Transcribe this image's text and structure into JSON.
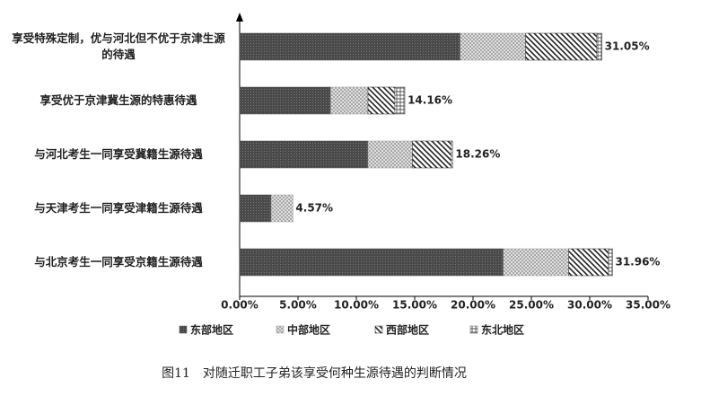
{
  "chart_data": {
    "type": "stacked-barh",
    "categories": [
      "享受特殊定制，优与河北但不优于京津生源的待遇",
      "享受优于京津冀生源的特惠待遇",
      "与河北考生一同享受冀籍生源待遇",
      "与天津考生一同享受津籍生源待遇",
      "与北京考生一同享受京籍生源待遇"
    ],
    "series": [
      {
        "name": "东部地区",
        "color": "#4a4a4a",
        "values": [
          18.9,
          7.8,
          11.0,
          2.7,
          22.6
        ]
      },
      {
        "name": "中部地区",
        "color": "#9a9a9a",
        "values": [
          5.6,
          3.2,
          3.8,
          1.87,
          5.6
        ]
      },
      {
        "name": "西部地区",
        "color": "#222222",
        "values": [
          6.1,
          2.3,
          3.35,
          0,
          3.4
        ]
      },
      {
        "name": "东北地区",
        "color": "#555555",
        "values": [
          0.45,
          0.86,
          0.11,
          0,
          0.36
        ]
      }
    ],
    "totals": [
      31.05,
      14.16,
      18.26,
      4.57,
      31.96
    ],
    "total_labels": [
      "31.05%",
      "14.16%",
      "18.26%",
      "4.57%",
      "31.96%"
    ],
    "xlim": [
      0,
      35
    ],
    "xticks": [
      {
        "value": 0,
        "label": "0.00%"
      },
      {
        "value": 5,
        "label": "5.00%"
      },
      {
        "value": 10,
        "label": "10.00%"
      },
      {
        "value": 15,
        "label": "15.00%"
      },
      {
        "value": 20,
        "label": "20.00%"
      },
      {
        "value": 25,
        "label": "25.00%"
      },
      {
        "value": 30,
        "label": "30.00%"
      },
      {
        "value": 35,
        "label": "35.00%"
      }
    ],
    "caption": "图11　对随迁职工子弟该享受何种生源待遇的判断情况"
  }
}
